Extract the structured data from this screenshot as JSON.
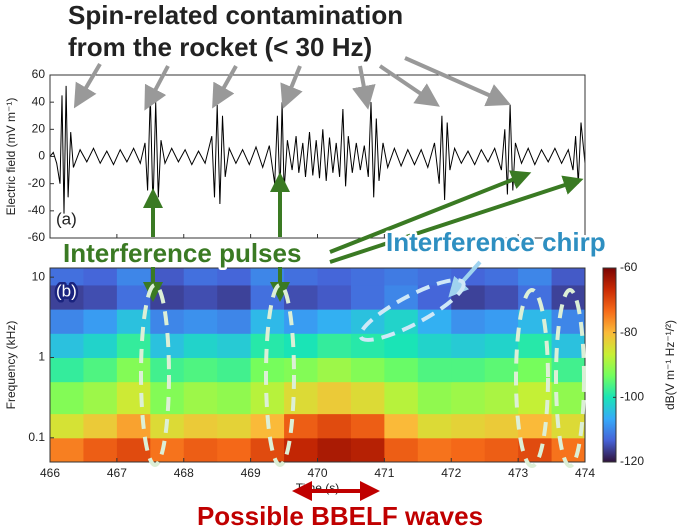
{
  "annotations": {
    "title_lines": [
      "Spin-related contamination",
      "from the rocket (< 30 Hz)"
    ],
    "pulses": "Interference pulses",
    "chirp": "Interference chirp",
    "bbelf": "Possible BBELF waves"
  },
  "chart_data": [
    {
      "type": "line",
      "panel_label": "(a)",
      "ylabel": "Electric field (mV m⁻¹)",
      "color": "#000000",
      "xlim": [
        466,
        474
      ],
      "ylim": [
        -60,
        60
      ],
      "yticks": [
        -60,
        -40,
        -20,
        0,
        20,
        40,
        60
      ],
      "x": [
        466.0,
        466.05,
        466.1,
        466.15,
        466.18,
        466.21,
        466.24,
        466.27,
        466.31,
        466.35,
        466.45,
        466.55,
        466.65,
        466.75,
        466.85,
        466.95,
        467.05,
        467.15,
        467.25,
        467.35,
        467.42,
        467.46,
        467.5,
        467.54,
        467.58,
        467.62,
        467.66,
        467.72,
        467.82,
        467.92,
        468.02,
        468.12,
        468.22,
        468.32,
        468.42,
        468.46,
        468.5,
        468.54,
        468.58,
        468.62,
        468.68,
        468.78,
        468.88,
        468.98,
        469.08,
        469.18,
        469.28,
        469.36,
        469.4,
        469.44,
        469.47,
        469.5,
        469.55,
        469.62,
        469.68,
        469.72,
        469.78,
        469.82,
        469.88,
        469.93,
        469.98,
        470.03,
        470.08,
        470.13,
        470.18,
        470.23,
        470.28,
        470.33,
        470.38,
        470.42,
        470.46,
        470.52,
        470.58,
        470.64,
        470.7,
        470.76,
        470.8,
        470.84,
        470.88,
        470.92,
        470.98,
        471.05,
        471.15,
        471.25,
        471.35,
        471.45,
        471.55,
        471.65,
        471.75,
        471.82,
        471.86,
        471.9,
        471.94,
        471.98,
        472.05,
        472.15,
        472.25,
        472.35,
        472.45,
        472.55,
        472.65,
        472.75,
        472.8,
        472.84,
        472.88,
        472.92,
        472.96,
        473.05,
        473.15,
        473.25,
        473.35,
        473.45,
        473.55,
        473.65,
        473.75,
        473.82,
        473.86,
        473.9,
        473.94,
        474.0
      ],
      "values": [
        0,
        3,
        -5,
        -20,
        45,
        -42,
        52,
        -30,
        18,
        -8,
        5,
        -4,
        6,
        -5,
        4,
        -6,
        5,
        -4,
        6,
        -5,
        10,
        -25,
        45,
        -38,
        40,
        -30,
        12,
        -5,
        6,
        -4,
        5,
        -6,
        4,
        -5,
        15,
        -30,
        38,
        -35,
        30,
        -15,
        6,
        -5,
        5,
        -6,
        7,
        -8,
        8,
        -20,
        30,
        -28,
        40,
        -25,
        12,
        -10,
        15,
        -12,
        10,
        -15,
        18,
        -14,
        12,
        -16,
        20,
        -18,
        14,
        -12,
        10,
        -15,
        35,
        -22,
        15,
        -12,
        10,
        -10,
        8,
        -15,
        40,
        -30,
        28,
        -18,
        10,
        -8,
        6,
        -7,
        5,
        -6,
        5,
        -8,
        10,
        -20,
        30,
        -32,
        25,
        -10,
        6,
        -5,
        4,
        -6,
        5,
        -4,
        6,
        -10,
        20,
        -28,
        38,
        -25,
        10,
        -5,
        6,
        -6,
        5,
        -4,
        6,
        -5,
        5,
        -10,
        15,
        -20,
        25,
        -5
      ]
    },
    {
      "type": "heatmap",
      "panel_label": "(b)",
      "xlabel": "Time (s)",
      "ylabel": "Frequency (kHz)",
      "xlim": [
        466,
        474
      ],
      "xticks": [
        466,
        467,
        468,
        469,
        470,
        471,
        472,
        473,
        474
      ],
      "ylim": [
        0.05,
        13
      ],
      "yticks": [
        0.1,
        1,
        10
      ],
      "log_y": true,
      "x_edges": [
        466,
        466.5,
        467,
        467.5,
        468,
        468.5,
        469,
        469.5,
        470,
        470.5,
        471,
        471.5,
        472,
        472.5,
        473,
        473.5,
        474
      ],
      "y_edges": [
        0.05,
        0.1,
        0.2,
        0.5,
        1,
        2,
        4,
        8,
        13
      ],
      "z": [
        [
          -75,
          -72,
          -70,
          -74,
          -72,
          -73,
          -70,
          -66,
          -64,
          -65,
          -72,
          -74,
          -73,
          -72,
          -70,
          -74
        ],
        [
          -85,
          -82,
          -78,
          -84,
          -82,
          -83,
          -80,
          -72,
          -70,
          -72,
          -80,
          -84,
          -83,
          -82,
          -80,
          -84
        ],
        [
          -92,
          -90,
          -86,
          -92,
          -90,
          -91,
          -88,
          -84,
          -82,
          -84,
          -88,
          -91,
          -90,
          -89,
          -87,
          -91
        ],
        [
          -98,
          -96,
          -92,
          -97,
          -96,
          -97,
          -93,
          -92,
          -90,
          -92,
          -94,
          -96,
          -96,
          -95,
          -93,
          -97
        ],
        [
          -104,
          -102,
          -98,
          -104,
          -102,
          -103,
          -99,
          -100,
          -98,
          -99,
          -100,
          -102,
          -103,
          -102,
          -99,
          -104
        ],
        [
          -110,
          -108,
          -104,
          -110,
          -109,
          -110,
          -105,
          -108,
          -106,
          -104,
          -102,
          -106,
          -109,
          -108,
          -105,
          -110
        ],
        [
          -116,
          -115,
          -112,
          -116,
          -115,
          -116,
          -112,
          -115,
          -114,
          -112,
          -110,
          -113,
          -116,
          -115,
          -112,
          -116
        ],
        [
          -112,
          -113,
          -110,
          -114,
          -112,
          -113,
          -110,
          -112,
          -113,
          -112,
          -111,
          -112,
          -113,
          -112,
          -110,
          -114
        ]
      ],
      "colormap": [
        "#30123b",
        "#4662d7",
        "#36aaf9",
        "#1ae4b6",
        "#72fe5e",
        "#c8ef34",
        "#faba39",
        "#f66b19",
        "#ca2a04",
        "#7a0403"
      ],
      "colorbar": {
        "lim": [
          -120,
          -60
        ],
        "ticks": [
          -120,
          -100,
          -80,
          -60
        ],
        "label": "dB(V m⁻¹ Hz⁻¹/²)"
      }
    }
  ]
}
